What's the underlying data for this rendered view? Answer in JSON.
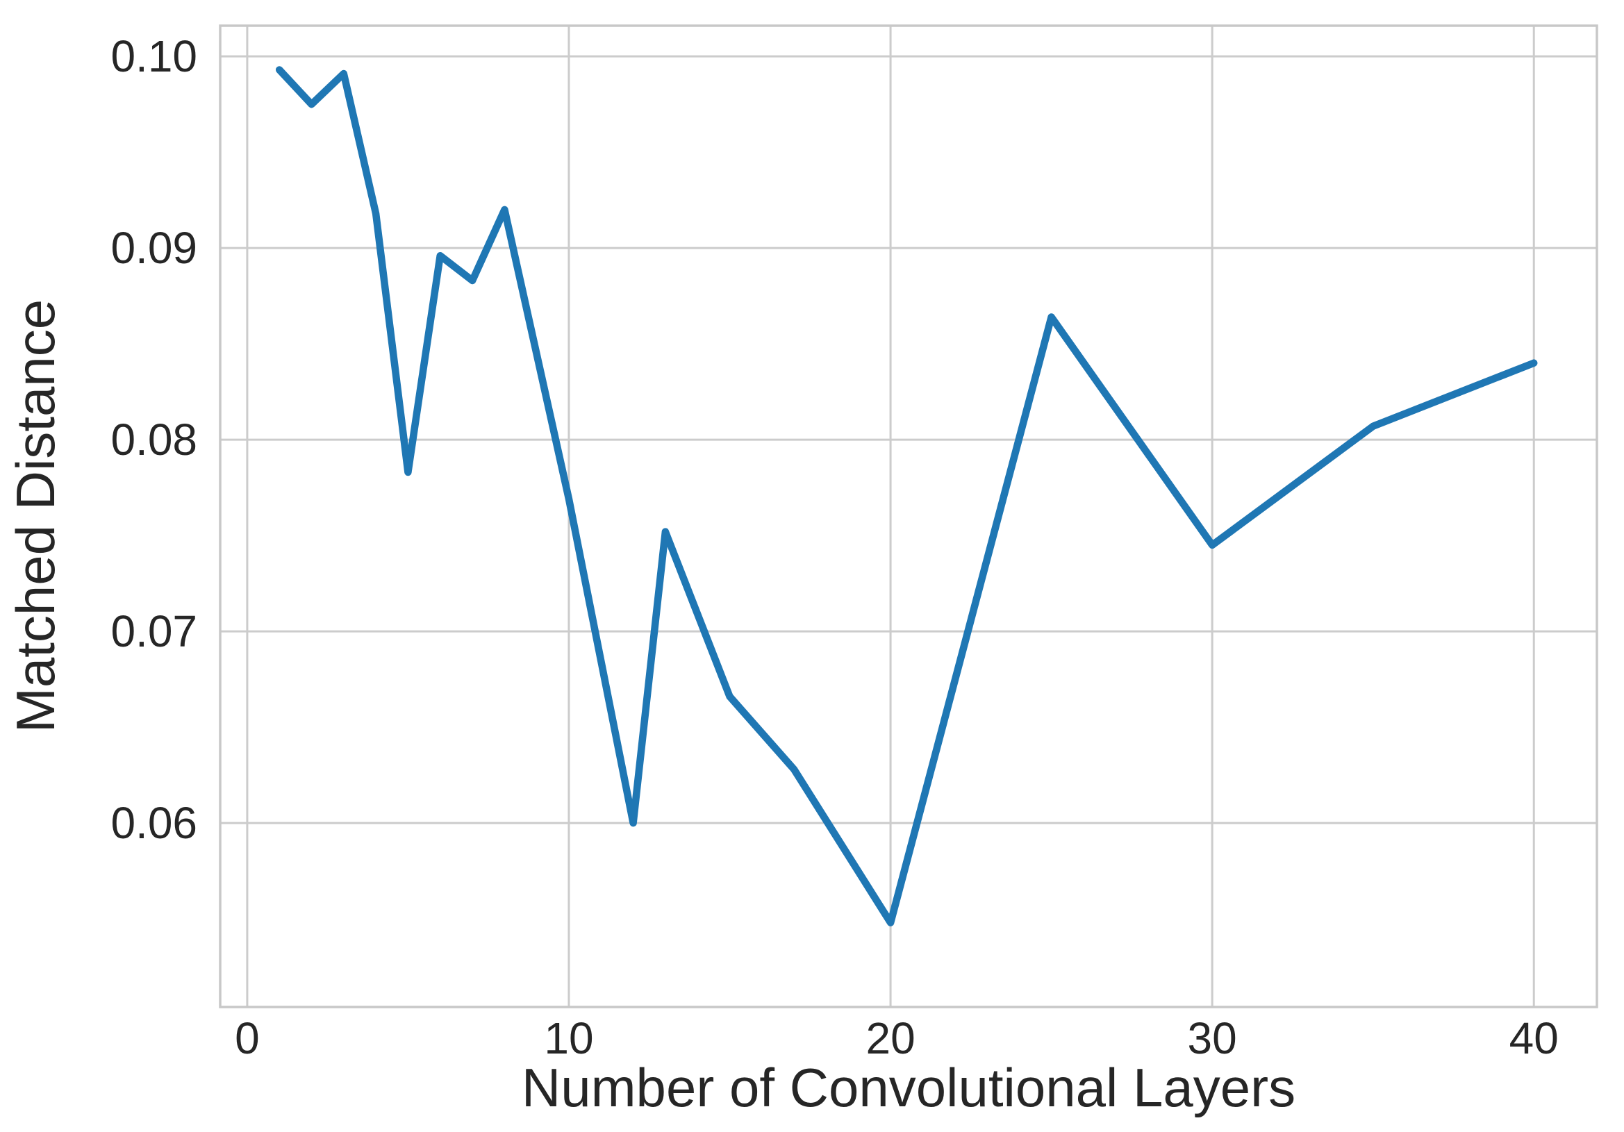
{
  "chart_data": {
    "type": "line",
    "title": "",
    "xlabel": "Number of Convolutional Layers",
    "ylabel": "Matched Distance",
    "x": [
      1,
      2,
      3,
      4,
      5,
      6,
      7,
      8,
      10,
      12,
      13,
      15,
      17,
      20,
      25,
      30,
      35,
      40
    ],
    "series": [
      {
        "name": "Matched Distance",
        "values": [
          0.0993,
          0.0975,
          0.0991,
          0.0918,
          0.0783,
          0.0896,
          0.0883,
          0.092,
          0.0769,
          0.06,
          0.0752,
          0.0666,
          0.0628,
          0.0548,
          0.0864,
          0.0745,
          0.0807,
          0.084
        ]
      }
    ],
    "x_ticks": [
      0,
      10,
      20,
      30,
      40
    ],
    "y_ticks": [
      0.06,
      0.07,
      0.08,
      0.09,
      0.1
    ],
    "xlim": [
      -0.84,
      41.96
    ],
    "ylim": [
      0.0504,
      0.1016
    ],
    "grid": true,
    "legend_position": "none",
    "colors": {
      "line": "#1f77b4",
      "grid": "#cccccc",
      "spine": "#c8c8c8",
      "text": "#262626",
      "background": "#ffffff"
    }
  }
}
